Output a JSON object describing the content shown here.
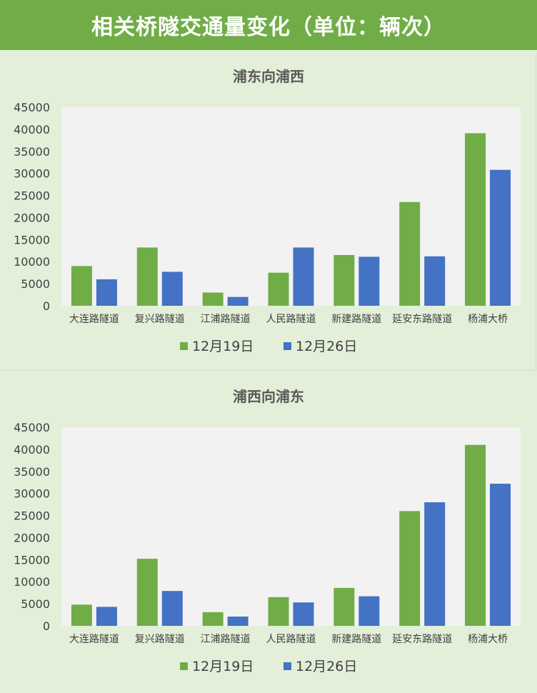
{
  "header": {
    "title": "相关桥隧交通量变化（单位：辆次）"
  },
  "colors": {
    "header_bg": "#70ad47",
    "series_1": "#70ad47",
    "series_2": "#4472c4",
    "plot_bg": "#f2f2f2",
    "page_bg": "#e3efd9"
  },
  "chart_data": [
    {
      "type": "bar",
      "title": "浦东向浦西",
      "categories": [
        "大连路隧道",
        "复兴路隧道",
        "江浦路隧道",
        "人民路隧道",
        "新建路隧道",
        "延安东路隧道",
        "杨浦大桥"
      ],
      "series": [
        {
          "name": "12月19日",
          "values": [
            9000,
            13200,
            3000,
            7500,
            11500,
            23500,
            39100
          ]
        },
        {
          "name": "12月26日",
          "values": [
            6000,
            7700,
            2000,
            13200,
            11100,
            11200,
            30800
          ]
        }
      ],
      "ylim": [
        0,
        45000
      ],
      "yticks": [
        "0",
        "5000",
        "10000",
        "15000",
        "20000",
        "25000",
        "30000",
        "35000",
        "40000",
        "45000"
      ],
      "legend": "bottom",
      "grid": false
    },
    {
      "type": "bar",
      "title": "浦西向浦东",
      "categories": [
        "大连路隧道",
        "复兴路隧道",
        "江浦路隧道",
        "人民路隧道",
        "新建路隧道",
        "延安东路隧道",
        "杨浦大桥"
      ],
      "series": [
        {
          "name": "12月19日",
          "values": [
            4800,
            15200,
            3100,
            6500,
            8600,
            26000,
            41000
          ]
        },
        {
          "name": "12月26日",
          "values": [
            4300,
            7900,
            2100,
            5300,
            6700,
            28000,
            32200
          ]
        }
      ],
      "ylim": [
        0,
        45000
      ],
      "yticks": [
        "0",
        "5000",
        "10000",
        "15000",
        "20000",
        "25000",
        "30000",
        "35000",
        "40000",
        "45000"
      ],
      "legend": "bottom",
      "grid": false
    }
  ]
}
